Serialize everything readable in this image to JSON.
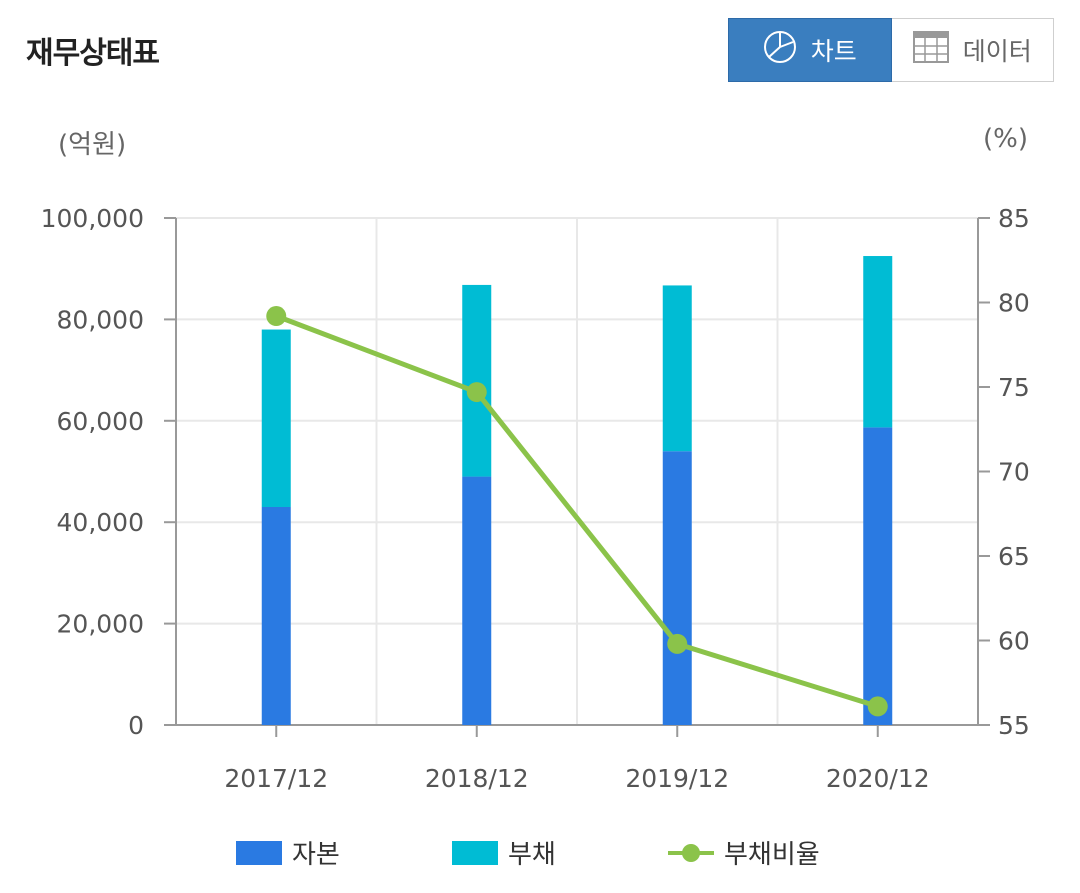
{
  "header": {
    "title": "재무상태표",
    "chart_label": "차트",
    "data_label": "데이터",
    "chart_icon": "pie-chart-icon",
    "data_icon": "table-grid-icon"
  },
  "units": {
    "left": "(억원)",
    "right": "(%)"
  },
  "colors": {
    "capital": "#2a7ae2",
    "debt": "#00bcd4",
    "ratio": "#8bc34a",
    "active_button": "#3a7ebf"
  },
  "chart_data": {
    "type": "bar",
    "stacked": true,
    "categories": [
      "2017/12",
      "2018/12",
      "2019/12",
      "2020/12"
    ],
    "series": [
      {
        "name": "자본",
        "type": "bar",
        "axis": "left",
        "values": [
          43000,
          49000,
          54000,
          58700
        ]
      },
      {
        "name": "부채",
        "type": "bar",
        "axis": "left",
        "values": [
          35000,
          37800,
          32700,
          33800
        ]
      },
      {
        "name": "부채비율",
        "type": "line",
        "axis": "right",
        "values": [
          79.2,
          74.7,
          59.8,
          56.1
        ]
      }
    ],
    "y_left": {
      "label": "(억원)",
      "min": 0,
      "max": 100000,
      "ticks": [
        "0",
        "20,000",
        "40,000",
        "60,000",
        "80,000",
        "100,000"
      ],
      "tick_values": [
        0,
        20000,
        40000,
        60000,
        80000,
        100000
      ]
    },
    "y_right": {
      "label": "(%)",
      "min": 55,
      "max": 85,
      "ticks": [
        "55",
        "60",
        "65",
        "70",
        "75",
        "80",
        "85"
      ],
      "tick_values": [
        55,
        60,
        65,
        70,
        75,
        80,
        85
      ]
    },
    "grid": true,
    "legend": "bottom"
  }
}
